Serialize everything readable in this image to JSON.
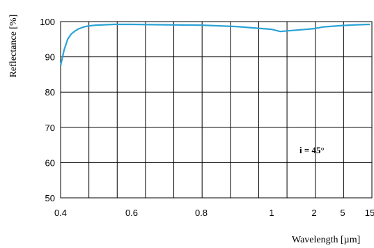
{
  "chart_data": {
    "type": "line",
    "xlabel": "Wavelength [µm]",
    "ylabel": "Reflectance [%]",
    "annotation": "i = 45°",
    "x_ticks": [
      "0.4",
      "0.6",
      "0.8",
      "1",
      "2",
      "5",
      "15"
    ],
    "y_ticks": [
      "50",
      "60",
      "70",
      "80",
      "90",
      "100"
    ],
    "ylim": [
      50,
      100
    ],
    "x_axis_note": "piecewise scale: linear 0.4–1 µm, compressed 1–15 µm",
    "grid": true,
    "line_color": "#2ba3d6",
    "series": [
      {
        "x": [
          0.4,
          0.41,
          0.42,
          0.43,
          0.44,
          0.45,
          0.46,
          0.47,
          0.48,
          0.5,
          0.55,
          0.6,
          0.7,
          0.8,
          0.9,
          0.95,
          1.0,
          1.2,
          1.5,
          2,
          3,
          5,
          10,
          15
        ],
        "y": [
          87.5,
          92.0,
          95.0,
          96.5,
          97.3,
          97.9,
          98.3,
          98.6,
          98.8,
          99.0,
          99.2,
          99.2,
          99.1,
          99.0,
          98.6,
          98.2,
          97.8,
          97.2,
          97.5,
          98.0,
          98.5,
          98.9,
          99.1,
          99.2
        ]
      }
    ]
  }
}
